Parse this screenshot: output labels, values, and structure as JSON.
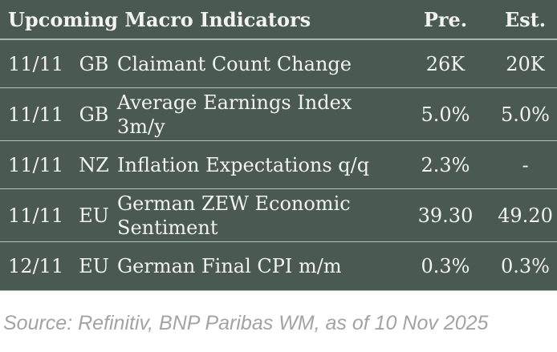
{
  "table": {
    "title": "Upcoming Macro Indicators",
    "columns": {
      "pre": "Pre.",
      "est": "Est."
    },
    "rows": [
      {
        "date": "11/11",
        "country": "GB",
        "indicator": "Claimant Count Change",
        "pre": "26K",
        "est": "20K"
      },
      {
        "date": "11/11",
        "country": "GB",
        "indicator": "Average Earnings Index\n3m/y",
        "pre": "5.0%",
        "est": "5.0%"
      },
      {
        "date": "11/11",
        "country": "NZ",
        "indicator": "Inflation Expectations q/q",
        "pre": "2.3%",
        "est": "-"
      },
      {
        "date": "11/11",
        "country": "EU",
        "indicator": "German ZEW Economic\nSentiment",
        "pre": "39.30",
        "est": "49.20"
      },
      {
        "date": "12/11",
        "country": "EU",
        "indicator": "German Final CPI m/m",
        "pre": "0.3%",
        "est": "0.3%"
      }
    ]
  },
  "footer": {
    "source": "Source: Refinitiv, BNP Paribas WM, as of 10 Nov 2025"
  },
  "colors": {
    "table_bg": "#4a5a53",
    "table_text": "#f2f2ee",
    "row_separator": "#b7c2ba",
    "header_separator": "#a9b6ae",
    "source_text": "#a3a3a3"
  }
}
